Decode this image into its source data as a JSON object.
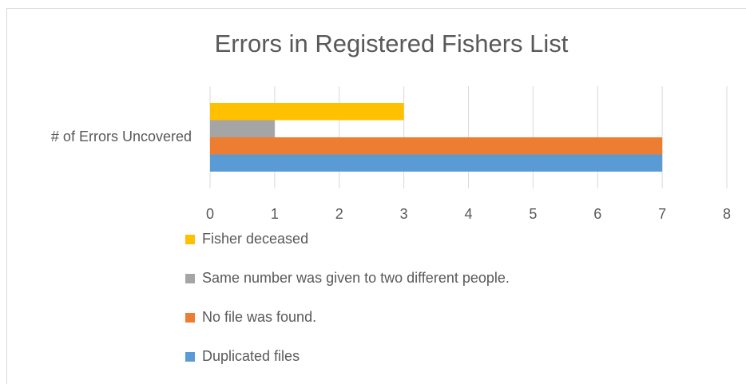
{
  "chart_data": {
    "type": "bar",
    "orientation": "horizontal",
    "title": "Errors in Registered Fishers List",
    "categories": [
      "# of Errors Uncovered"
    ],
    "series": [
      {
        "name": "Fisher deceased",
        "color": "#FFC000",
        "values": [
          3
        ]
      },
      {
        "name": "Same number was given to two different people.",
        "color": "#A5A5A5",
        "values": [
          1
        ]
      },
      {
        "name": "No file was found.",
        "color": "#ED7D31",
        "values": [
          7
        ]
      },
      {
        "name": "Duplicated files",
        "color": "#5B9BD5",
        "values": [
          7
        ]
      }
    ],
    "xlim": [
      0,
      8
    ],
    "xticks": [
      0,
      1,
      2,
      3,
      4,
      5,
      6,
      7,
      8
    ],
    "grid": true,
    "legend": "bottom"
  }
}
